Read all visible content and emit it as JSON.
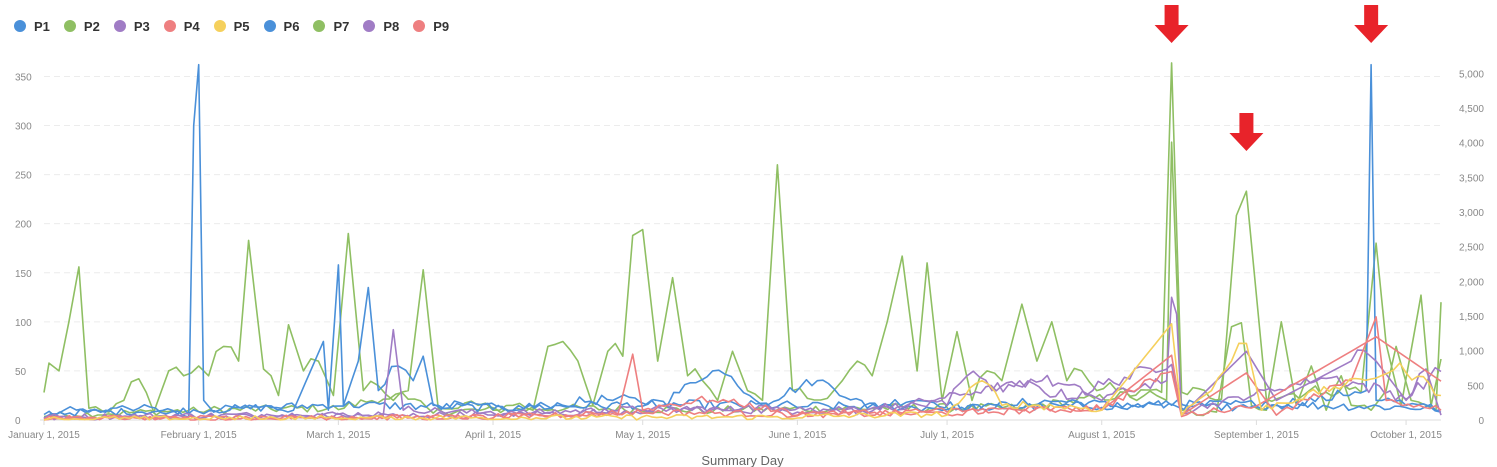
{
  "legend": [
    {
      "name": "P1",
      "color": "#4a90d9"
    },
    {
      "name": "P2",
      "color": "#8fbf63"
    },
    {
      "name": "P3",
      "color": "#a07cc5"
    },
    {
      "name": "P4",
      "color": "#ee7f80"
    },
    {
      "name": "P5",
      "color": "#f5d05c"
    },
    {
      "name": "P6",
      "color": "#4a90d9"
    },
    {
      "name": "P7",
      "color": "#8fbf63"
    },
    {
      "name": "P8",
      "color": "#a07cc5"
    },
    {
      "name": "P9",
      "color": "#ee7f80"
    }
  ],
  "annotation_color": "#e8232a",
  "chart_data": {
    "type": "line",
    "xlabel": "Summary Day",
    "x_range": [
      "2015-01-01",
      "2015-10-08"
    ],
    "x_ticks": [
      "January 1, 2015",
      "February 1, 2015",
      "March 1, 2015",
      "April 1, 2015",
      "May 1, 2015",
      "June 1, 2015",
      "July 1, 2015",
      "August 1, 2015",
      "September 1, 2015",
      "October 1, 2015"
    ],
    "y_left_range": [
      0,
      380
    ],
    "y_left_ticks": [
      "0",
      "50",
      "100",
      "150",
      "200",
      "250",
      "300",
      "350"
    ],
    "y_right_range": [
      0,
      5380
    ],
    "y_right_ticks": [
      "0",
      "500",
      "1,000",
      "1,500",
      "2,000",
      "2,500",
      "3,000",
      "3,500",
      "4,000",
      "4,500",
      "5,000"
    ],
    "grid": "horizontal dashed",
    "legend_position": "top-left",
    "series": [
      {
        "name": "P2",
        "color": "#8fbf63",
        "axis": "left",
        "points": [
          [
            "2015-01-01",
            28
          ],
          [
            "2015-01-02",
            58
          ],
          [
            "2015-01-04",
            50
          ],
          [
            "2015-01-06",
            100
          ],
          [
            "2015-01-08",
            156
          ],
          [
            "2015-01-10",
            12
          ],
          [
            "2015-01-14",
            8
          ],
          [
            "2015-01-17",
            20
          ],
          [
            "2015-01-20",
            42
          ],
          [
            "2015-01-23",
            8
          ],
          [
            "2015-01-26",
            50
          ],
          [
            "2015-01-29",
            45
          ],
          [
            "2015-02-01",
            55
          ],
          [
            "2015-02-03",
            45
          ],
          [
            "2015-02-06",
            75
          ],
          [
            "2015-02-09",
            60
          ],
          [
            "2015-02-11",
            183
          ],
          [
            "2015-02-14",
            52
          ],
          [
            "2015-02-17",
            25
          ],
          [
            "2015-02-19",
            97
          ],
          [
            "2015-02-22",
            50
          ],
          [
            "2015-02-25",
            60
          ],
          [
            "2015-02-28",
            25
          ],
          [
            "2015-03-03",
            190
          ],
          [
            "2015-03-06",
            30
          ],
          [
            "2015-03-09",
            35
          ],
          [
            "2015-03-12",
            20
          ],
          [
            "2015-03-15",
            30
          ],
          [
            "2015-03-18",
            153
          ],
          [
            "2015-03-21",
            12
          ],
          [
            "2015-03-25",
            12
          ],
          [
            "2015-03-29",
            15
          ],
          [
            "2015-04-01",
            10
          ],
          [
            "2015-04-05",
            15
          ],
          [
            "2015-04-09",
            10
          ],
          [
            "2015-04-12",
            75
          ],
          [
            "2015-04-15",
            80
          ],
          [
            "2015-04-18",
            60
          ],
          [
            "2015-04-21",
            15
          ],
          [
            "2015-04-24",
            70
          ],
          [
            "2015-04-27",
            65
          ],
          [
            "2015-04-29",
            188
          ],
          [
            "2015-05-01",
            194
          ],
          [
            "2015-05-04",
            60
          ],
          [
            "2015-05-07",
            145
          ],
          [
            "2015-05-10",
            45
          ],
          [
            "2015-05-13",
            40
          ],
          [
            "2015-05-16",
            20
          ],
          [
            "2015-05-19",
            70
          ],
          [
            "2015-05-22",
            30
          ],
          [
            "2015-05-25",
            20
          ],
          [
            "2015-05-28",
            260
          ],
          [
            "2015-05-31",
            30
          ],
          [
            "2015-06-03",
            22
          ],
          [
            "2015-06-07",
            22
          ],
          [
            "2015-06-10",
            40
          ],
          [
            "2015-06-13",
            60
          ],
          [
            "2015-06-16",
            45
          ],
          [
            "2015-06-19",
            100
          ],
          [
            "2015-06-22",
            167
          ],
          [
            "2015-06-25",
            50
          ],
          [
            "2015-06-27",
            160
          ],
          [
            "2015-06-30",
            20
          ],
          [
            "2015-07-03",
            90
          ],
          [
            "2015-07-06",
            20
          ],
          [
            "2015-07-09",
            50
          ],
          [
            "2015-07-12",
            40
          ],
          [
            "2015-07-16",
            118
          ],
          [
            "2015-07-19",
            60
          ],
          [
            "2015-07-22",
            100
          ],
          [
            "2015-07-25",
            40
          ],
          [
            "2015-07-28",
            50
          ],
          [
            "2015-07-31",
            30
          ],
          [
            "2015-08-04",
            30
          ],
          [
            "2015-08-08",
            20
          ],
          [
            "2015-08-12",
            25
          ],
          [
            "2015-08-14",
            20
          ],
          [
            "2015-08-15",
            283
          ],
          [
            "2015-08-17",
            10
          ],
          [
            "2015-08-20",
            5
          ],
          [
            "2015-08-24",
            8
          ],
          [
            "2015-08-27",
            95
          ],
          [
            "2015-08-29",
            99
          ],
          [
            "2015-08-31",
            15
          ],
          [
            "2015-09-03",
            10
          ],
          [
            "2015-09-06",
            100
          ],
          [
            "2015-09-09",
            15
          ],
          [
            "2015-09-12",
            55
          ],
          [
            "2015-09-15",
            10
          ],
          [
            "2015-09-18",
            45
          ],
          [
            "2015-09-20",
            15
          ],
          [
            "2015-09-24",
            10
          ],
          [
            "2015-09-27",
            30
          ],
          [
            "2015-09-29",
            75
          ],
          [
            "2015-10-02",
            20
          ],
          [
            "2015-10-05",
            15
          ],
          [
            "2015-10-07",
            10
          ],
          [
            "2015-10-08",
            120
          ]
        ]
      },
      {
        "name": "P7",
        "color": "#8fbf63",
        "axis": "right",
        "points": [
          [
            "2015-01-01",
            50
          ],
          [
            "2015-01-15",
            80
          ],
          [
            "2015-02-01",
            120
          ],
          [
            "2015-03-01",
            150
          ],
          [
            "2015-03-10",
            300
          ],
          [
            "2015-03-15",
            300
          ],
          [
            "2015-03-20",
            100
          ],
          [
            "2015-04-15",
            150
          ],
          [
            "2015-05-15",
            120
          ],
          [
            "2015-06-15",
            150
          ],
          [
            "2015-07-15",
            150
          ],
          [
            "2015-08-13",
            400
          ],
          [
            "2015-08-15",
            5150
          ],
          [
            "2015-08-17",
            400
          ],
          [
            "2015-08-25",
            300
          ],
          [
            "2015-08-28",
            2950
          ],
          [
            "2015-08-30",
            3300
          ],
          [
            "2015-09-01",
            1800
          ],
          [
            "2015-09-03",
            300
          ],
          [
            "2015-09-15",
            400
          ],
          [
            "2015-09-22",
            400
          ],
          [
            "2015-09-25",
            2550
          ],
          [
            "2015-09-27",
            1100
          ],
          [
            "2015-09-30",
            200
          ],
          [
            "2015-10-04",
            1800
          ],
          [
            "2015-10-06",
            200
          ],
          [
            "2015-10-08",
            880
          ]
        ]
      },
      {
        "name": "P1",
        "color": "#4a90d9",
        "axis": "left",
        "points": [
          [
            "2015-01-01",
            2
          ],
          [
            "2015-01-05",
            10
          ],
          [
            "2015-01-10",
            8
          ],
          [
            "2015-01-20",
            12
          ],
          [
            "2015-01-30",
            3
          ],
          [
            "2015-01-31",
            300
          ],
          [
            "2015-02-01",
            362
          ],
          [
            "2015-02-02",
            20
          ],
          [
            "2015-02-04",
            8
          ],
          [
            "2015-02-10",
            12
          ],
          [
            "2015-02-20",
            10
          ],
          [
            "2015-02-26",
            80
          ],
          [
            "2015-02-27",
            10
          ],
          [
            "2015-03-01",
            158
          ],
          [
            "2015-03-02",
            15
          ],
          [
            "2015-03-05",
            60
          ],
          [
            "2015-03-07",
            135
          ],
          [
            "2015-03-09",
            30
          ],
          [
            "2015-03-13",
            55
          ],
          [
            "2015-03-16",
            40
          ],
          [
            "2015-03-18",
            65
          ],
          [
            "2015-03-20",
            15
          ],
          [
            "2015-04-05",
            10
          ],
          [
            "2015-04-15",
            15
          ],
          [
            "2015-04-25",
            20
          ],
          [
            "2015-05-05",
            15
          ],
          [
            "2015-05-15",
            50
          ],
          [
            "2015-05-20",
            35
          ],
          [
            "2015-05-25",
            15
          ],
          [
            "2015-06-05",
            40
          ],
          [
            "2015-06-15",
            12
          ],
          [
            "2015-06-25",
            20
          ],
          [
            "2015-07-05",
            10
          ],
          [
            "2015-07-15",
            15
          ],
          [
            "2015-07-25",
            18
          ],
          [
            "2015-08-05",
            12
          ],
          [
            "2015-08-15",
            15
          ],
          [
            "2015-08-25",
            10
          ],
          [
            "2015-09-05",
            15
          ],
          [
            "2015-09-15",
            20
          ],
          [
            "2015-09-23",
            30
          ],
          [
            "2015-09-24",
            362
          ],
          [
            "2015-09-25",
            20
          ],
          [
            "2015-10-01",
            15
          ],
          [
            "2015-10-08",
            8
          ]
        ]
      },
      {
        "name": "P6",
        "color": "#4a90d9",
        "axis": "right",
        "points": [
          [
            "2015-01-01",
            80
          ],
          [
            "2015-02-01",
            120
          ],
          [
            "2015-03-01",
            200
          ],
          [
            "2015-04-01",
            150
          ],
          [
            "2015-05-01",
            200
          ],
          [
            "2015-06-01",
            180
          ],
          [
            "2015-07-01",
            150
          ],
          [
            "2015-08-01",
            180
          ],
          [
            "2015-09-01",
            200
          ],
          [
            "2015-10-08",
            150
          ]
        ]
      },
      {
        "name": "P3",
        "color": "#a07cc5",
        "axis": "left",
        "points": [
          [
            "2015-01-01",
            2
          ],
          [
            "2015-03-10",
            5
          ],
          [
            "2015-03-12",
            92
          ],
          [
            "2015-03-14",
            10
          ],
          [
            "2015-04-01",
            5
          ],
          [
            "2015-05-01",
            10
          ],
          [
            "2015-06-01",
            8
          ],
          [
            "2015-07-01",
            15
          ],
          [
            "2015-07-05",
            45
          ],
          [
            "2015-07-10",
            30
          ],
          [
            "2015-07-20",
            40
          ],
          [
            "2015-08-01",
            20
          ],
          [
            "2015-08-14",
            40
          ],
          [
            "2015-08-15",
            125
          ],
          [
            "2015-08-16",
            108
          ],
          [
            "2015-08-17",
            5
          ],
          [
            "2015-08-30",
            70
          ],
          [
            "2015-09-05",
            20
          ],
          [
            "2015-09-20",
            60
          ],
          [
            "2015-09-25",
            60
          ],
          [
            "2015-10-01",
            20
          ],
          [
            "2015-10-05",
            52
          ],
          [
            "2015-10-08",
            5
          ]
        ]
      },
      {
        "name": "P8",
        "color": "#a07cc5",
        "axis": "right",
        "points": [
          [
            "2015-01-01",
            20
          ],
          [
            "2015-03-15",
            50
          ],
          [
            "2015-04-15",
            80
          ],
          [
            "2015-05-15",
            150
          ],
          [
            "2015-06-15",
            100
          ],
          [
            "2015-07-15",
            500
          ],
          [
            "2015-07-25",
            300
          ],
          [
            "2015-08-15",
            800
          ],
          [
            "2015-08-17",
            100
          ],
          [
            "2015-09-15",
            600
          ],
          [
            "2015-10-01",
            300
          ],
          [
            "2015-10-08",
            700
          ]
        ]
      },
      {
        "name": "P4",
        "color": "#ee7f80",
        "axis": "left",
        "points": [
          [
            "2015-01-01",
            0
          ],
          [
            "2015-04-01",
            2
          ],
          [
            "2015-04-26",
            5
          ],
          [
            "2015-04-29",
            67
          ],
          [
            "2015-05-01",
            10
          ],
          [
            "2015-05-15",
            20
          ],
          [
            "2015-06-01",
            5
          ],
          [
            "2015-07-01",
            8
          ],
          [
            "2015-08-01",
            10
          ],
          [
            "2015-08-15",
            66
          ],
          [
            "2015-08-17",
            5
          ],
          [
            "2015-08-30",
            48
          ],
          [
            "2015-09-05",
            5
          ],
          [
            "2015-09-20",
            40
          ],
          [
            "2015-09-25",
            105
          ],
          [
            "2015-09-27",
            20
          ],
          [
            "2015-10-08",
            10
          ]
        ]
      },
      {
        "name": "P9",
        "color": "#ee7f80",
        "axis": "right",
        "points": [
          [
            "2015-01-01",
            10
          ],
          [
            "2015-04-01",
            30
          ],
          [
            "2015-05-01",
            100
          ],
          [
            "2015-06-01",
            60
          ],
          [
            "2015-07-01",
            80
          ],
          [
            "2015-08-01",
            150
          ],
          [
            "2015-08-15",
            700
          ],
          [
            "2015-08-17",
            50
          ],
          [
            "2015-09-01",
            200
          ],
          [
            "2015-09-25",
            1200
          ],
          [
            "2015-10-08",
            560
          ]
        ]
      },
      {
        "name": "P5",
        "color": "#f5d05c",
        "axis": "left",
        "points": [
          [
            "2015-01-01",
            0
          ],
          [
            "2015-06-01",
            2
          ],
          [
            "2015-07-01",
            5
          ],
          [
            "2015-07-08",
            40
          ],
          [
            "2015-07-12",
            15
          ],
          [
            "2015-08-01",
            10
          ],
          [
            "2015-08-15",
            98
          ],
          [
            "2015-08-17",
            5
          ],
          [
            "2015-08-23",
            30
          ],
          [
            "2015-08-27",
            60
          ],
          [
            "2015-08-30",
            78
          ],
          [
            "2015-09-02",
            10
          ],
          [
            "2015-09-26",
            45
          ],
          [
            "2015-10-01",
            48
          ],
          [
            "2015-10-08",
            25
          ]
        ]
      }
    ],
    "annotations": [
      {
        "type": "arrow-down",
        "x": "2015-08-15",
        "y": 380
      },
      {
        "type": "arrow-down",
        "x": "2015-08-30",
        "y": 270
      },
      {
        "type": "arrow-down",
        "x": "2015-09-24",
        "y": 380
      }
    ]
  }
}
